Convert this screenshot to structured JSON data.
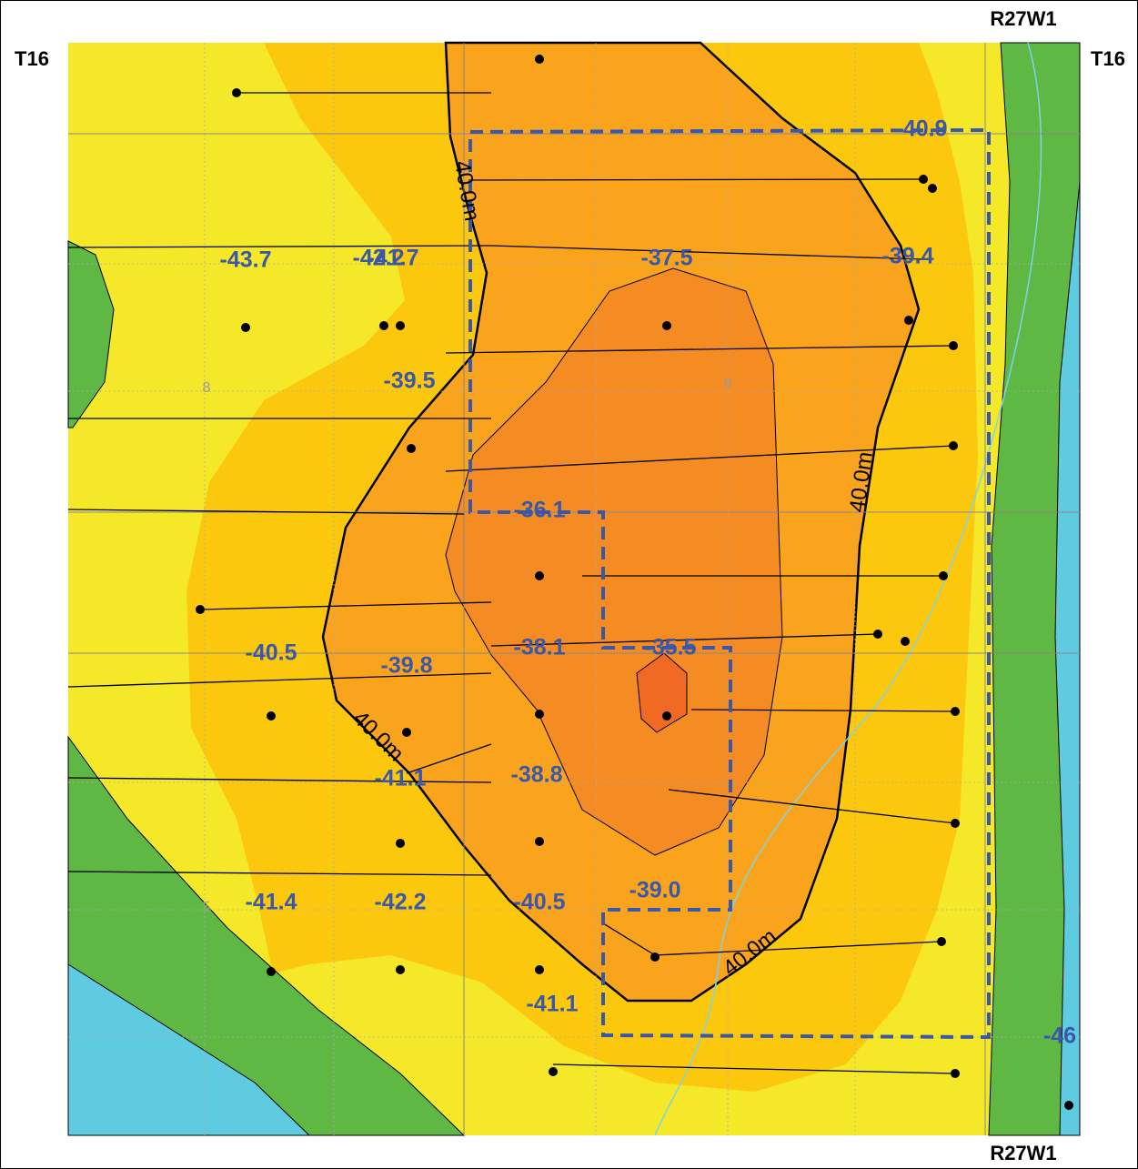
{
  "header": {
    "range_top": "R27W1",
    "township_left": "T16",
    "township_right": "T16",
    "range_bottom": "R27W1"
  },
  "section_numbers": [
    "8",
    "9",
    "5"
  ],
  "well_values": [
    "-43.7",
    "-42.2",
    "-41.7",
    "-37.5",
    "-39.4",
    "-40.9",
    "-39.5",
    "-36.1",
    "-38.1",
    "-35.5",
    "-40.5",
    "-39.8",
    "-41.1",
    "-38.8",
    "-39.0",
    "-41.4",
    "-42.2",
    "-40.5",
    "-41.1",
    "-46"
  ],
  "contour_labels": [
    "40.0m",
    "40.0m",
    "40.0m",
    "40.0m"
  ]
}
